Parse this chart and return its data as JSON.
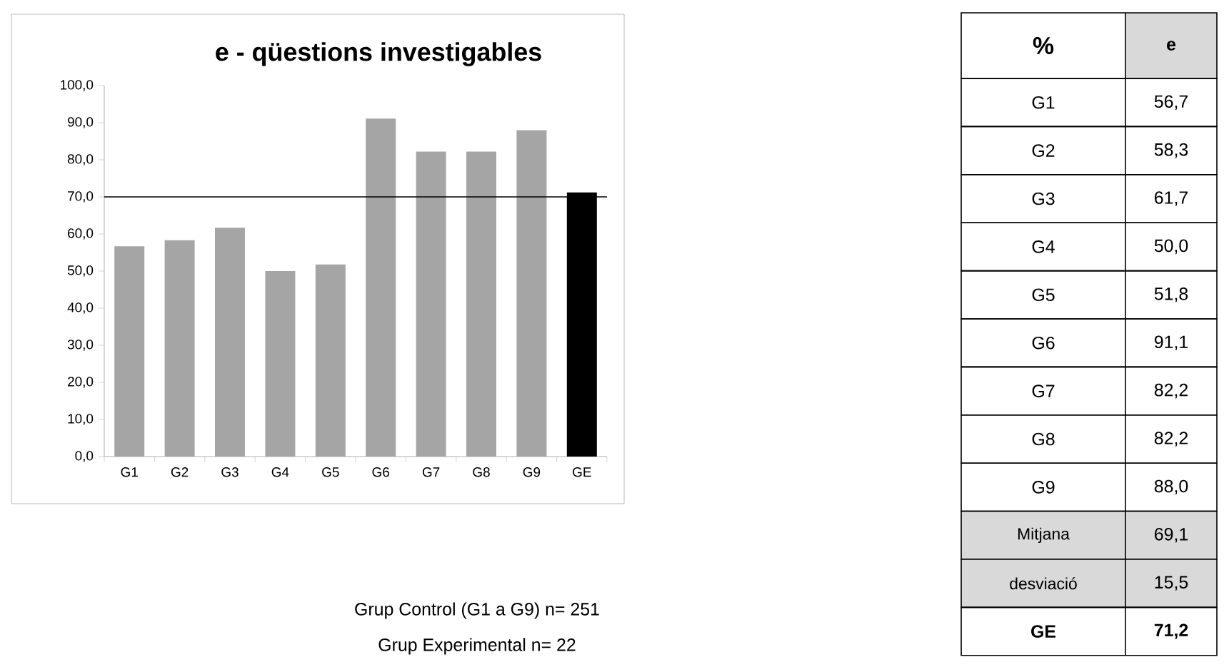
{
  "chart_data": [
    {
      "type": "bar",
      "title": "e - qüestions investigables",
      "categories": [
        "G1",
        "G2",
        "G3",
        "G4",
        "G5",
        "G6",
        "G7",
        "G8",
        "G9",
        "GE"
      ],
      "series": [
        {
          "colors": [
            "#a5a5a5",
            "#a5a5a5",
            "#a5a5a5",
            "#a5a5a5",
            "#a5a5a5",
            "#a5a5a5",
            "#a5a5a5",
            "#a5a5a5",
            "#a5a5a5",
            "#000000"
          ],
          "values": [
            56.7,
            58.3,
            61.7,
            50.0,
            51.8,
            91.1,
            82.2,
            82.2,
            88.0,
            71.2
          ]
        }
      ],
      "ylim": [
        0,
        100
      ],
      "yticks": [
        {
          "value": 0,
          "label": "0,0"
        },
        {
          "value": 10,
          "label": "10,0"
        },
        {
          "value": 20,
          "label": "20,0"
        },
        {
          "value": 30,
          "label": "30,0"
        },
        {
          "value": 40,
          "label": "40,0"
        },
        {
          "value": 50,
          "label": "50,0"
        },
        {
          "value": 60,
          "label": "60,0"
        },
        {
          "value": 70,
          "label": "70,0"
        },
        {
          "value": 80,
          "label": "80,0"
        },
        {
          "value": 90,
          "label": "90,0"
        },
        {
          "value": 100,
          "label": "100,0"
        }
      ],
      "ref_lines": [
        {
          "axis": "y",
          "value": 70,
          "color": "#000000"
        }
      ],
      "annotations": [
        "Grup Control (G1 a G9)   n= 251",
        "Grup Experimental   n= 22"
      ]
    },
    {
      "type": "other",
      "annotations": [
        "%",
        "e",
        "G1",
        "56,7",
        "G2",
        "58,3",
        "G3",
        "61,7",
        "G4",
        "50,0",
        "G5",
        "51,8",
        "G6",
        "91,1",
        "G7",
        "82,2",
        "G8",
        "82,2",
        "G9",
        "88,0",
        "Mitjana",
        "69,1",
        "desviació",
        "15,5",
        "GE",
        "71,2"
      ]
    }
  ]
}
